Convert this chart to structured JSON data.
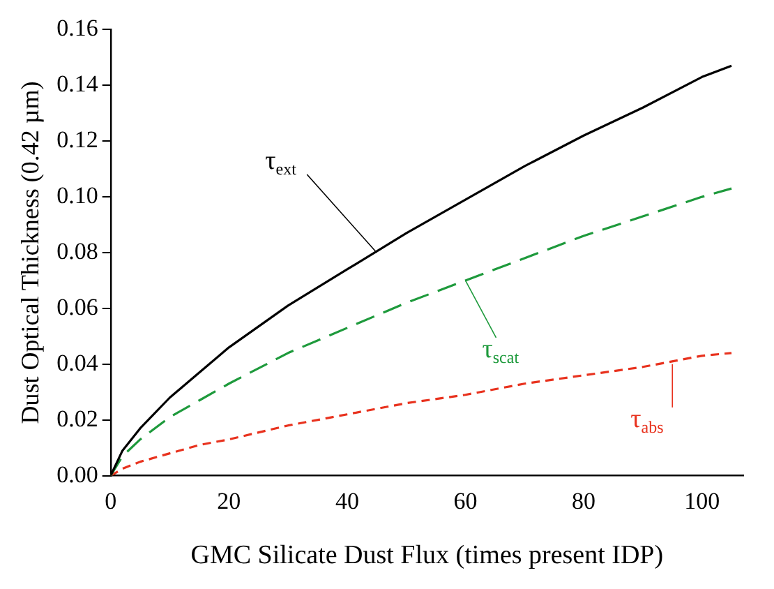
{
  "chart_data": {
    "type": "line",
    "xlabel": "GMC Silicate Dust Flux (times present IDP)",
    "ylabel": "Dust Optical Thickness (0.42 µm)",
    "x": [
      0,
      2,
      5,
      10,
      15,
      20,
      30,
      40,
      50,
      60,
      70,
      80,
      90,
      100,
      105
    ],
    "series": [
      {
        "color": "#000000",
        "line_style": "solid",
        "values": [
          0,
          0.009,
          0.017,
          0.028,
          0.037,
          0.046,
          0.061,
          0.074,
          0.087,
          0.099,
          0.111,
          0.122,
          0.132,
          0.143,
          0.147
        ]
      },
      {
        "color": "#1e9a3c",
        "line_style": "dashed",
        "values": [
          0,
          0.007,
          0.013,
          0.021,
          0.027,
          0.033,
          0.044,
          0.053,
          0.062,
          0.07,
          0.078,
          0.086,
          0.093,
          0.1,
          0.103
        ]
      },
      {
        "color": "#e8321e",
        "line_style": "dotted",
        "values": [
          0,
          0.0025,
          0.005,
          0.008,
          0.011,
          0.013,
          0.018,
          0.022,
          0.026,
          0.029,
          0.033,
          0.036,
          0.039,
          0.043,
          0.044
        ]
      }
    ],
    "annotations": [
      {
        "text": "τ$_{ext}$",
        "x": 45,
        "y": 0.08
      },
      {
        "text": "τ$_{scat}$",
        "x": 60,
        "y": 0.07
      },
      {
        "text": "τ$_{abs}$",
        "x": 95,
        "y": 0.04
      }
    ],
    "xlim": [
      0,
      107
    ],
    "xticks": [
      0,
      20,
      40,
      60,
      80,
      100
    ],
    "ylim": [
      0,
      0.16
    ],
    "yticks": [
      {
        "value": 0,
        "label": "0.00"
      },
      {
        "value": 0.02,
        "label": "0.02"
      },
      {
        "value": 0.04,
        "label": "0.04"
      },
      {
        "value": 0.06,
        "label": "0.06"
      },
      {
        "value": 0.08,
        "label": "0.08"
      },
      {
        "value": 0.1,
        "label": "0.10"
      },
      {
        "value": 0.12,
        "label": "0.12"
      },
      {
        "value": 0.14,
        "label": "0.14"
      },
      {
        "value": 0.16,
        "label": "0.16"
      }
    ],
    "grid": false,
    "legend": false,
    "marker": "none"
  }
}
